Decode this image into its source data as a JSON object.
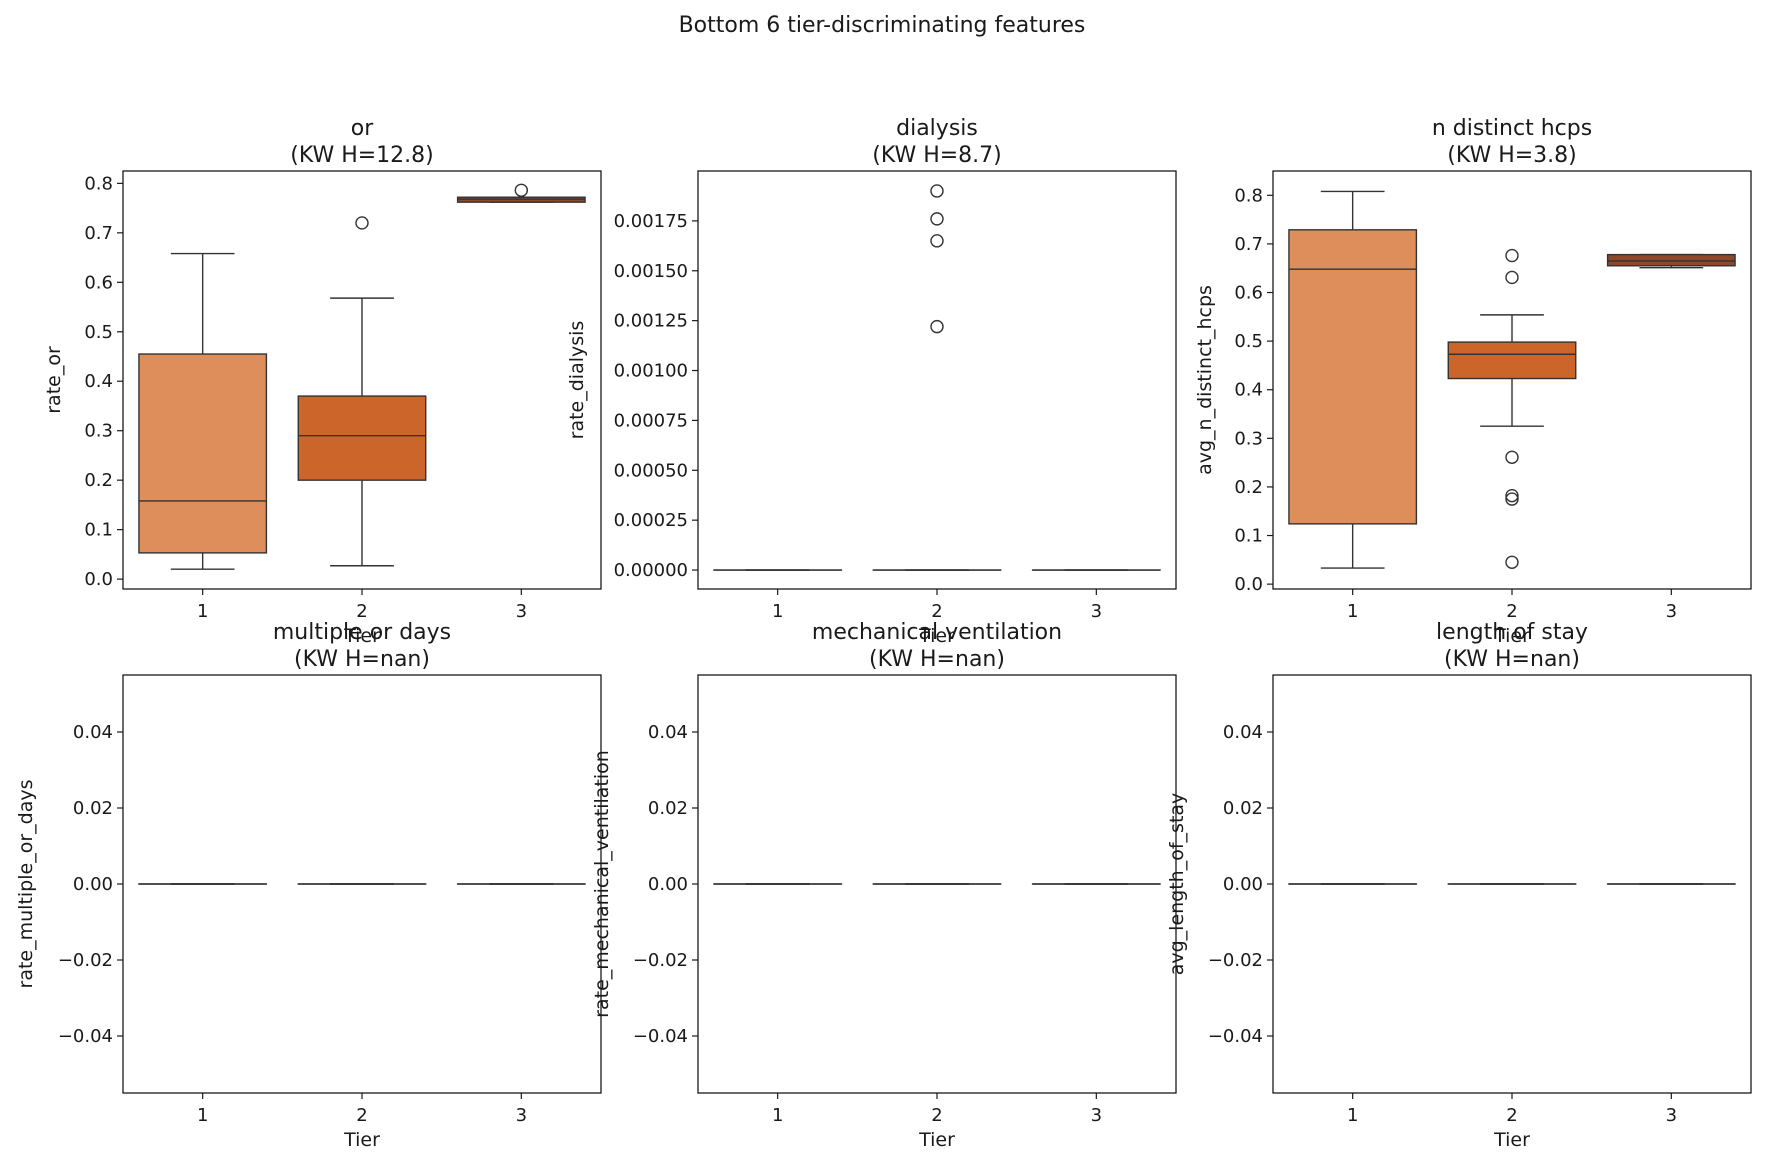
{
  "figure_title": "Bottom 6 tier-discriminating features",
  "colors": {
    "tier1": "#dd8e5b",
    "tier2": "#cc6529",
    "tier3": "#8c4828",
    "edge": "#333333",
    "axis": "#1a1a1a",
    "background": "#ffffff"
  },
  "chart_data": [
    {
      "type": "box",
      "title_line1": "or",
      "title_line2": "(KW H=12.8)",
      "xlabel": "Tier",
      "ylabel": "rate_or",
      "categories": [
        "1",
        "2",
        "3"
      ],
      "ylim": [
        -0.02,
        0.825
      ],
      "yticks": [
        0.0,
        0.1,
        0.2,
        0.3,
        0.4,
        0.5,
        0.6,
        0.7,
        0.8
      ],
      "ytick_labels": [
        "0.0",
        "0.1",
        "0.2",
        "0.3",
        "0.4",
        "0.5",
        "0.6",
        "0.7",
        "0.8"
      ],
      "boxes": [
        {
          "tier": "1",
          "whislo": 0.02,
          "q1": 0.053,
          "med": 0.158,
          "q3": 0.455,
          "whishi": 0.658,
          "fliers": []
        },
        {
          "tier": "2",
          "whislo": 0.027,
          "q1": 0.2,
          "med": 0.29,
          "q3": 0.37,
          "whishi": 0.568,
          "fliers": [
            0.72
          ]
        },
        {
          "tier": "3",
          "whislo": 0.762,
          "q1": 0.762,
          "med": 0.768,
          "q3": 0.772,
          "whishi": 0.772,
          "fliers": [
            0.786
          ]
        }
      ]
    },
    {
      "type": "box",
      "title_line1": "dialysis",
      "title_line2": "(KW H=8.7)",
      "xlabel": "Tier",
      "ylabel": "rate_dialysis",
      "categories": [
        "1",
        "2",
        "3"
      ],
      "ylim": [
        -9.5e-05,
        0.002
      ],
      "yticks": [
        0,
        0.00025,
        0.0005,
        0.00075,
        0.001,
        0.00125,
        0.0015,
        0.00175
      ],
      "ytick_labels": [
        "0.00000",
        "0.00025",
        "0.00050",
        "0.00075",
        "0.00100",
        "0.00125",
        "0.00150",
        "0.00175"
      ],
      "boxes": [
        {
          "tier": "1",
          "whislo": 0,
          "q1": 0,
          "med": 0,
          "q3": 0,
          "whishi": 0,
          "fliers": []
        },
        {
          "tier": "2",
          "whislo": 0,
          "q1": 0,
          "med": 0,
          "q3": 0,
          "whishi": 0,
          "fliers": [
            0.0019,
            0.00176,
            0.00165,
            0.00122
          ]
        },
        {
          "tier": "3",
          "whislo": 0,
          "q1": 0,
          "med": 0,
          "q3": 0,
          "whishi": 0,
          "fliers": []
        }
      ]
    },
    {
      "type": "box",
      "title_line1": "n distinct hcps",
      "title_line2": "(KW H=3.8)",
      "xlabel": "Tier",
      "ylabel": "avg_n_distinct_hcps",
      "categories": [
        "1",
        "2",
        "3"
      ],
      "ylim": [
        -0.01,
        0.85
      ],
      "yticks": [
        0.0,
        0.1,
        0.2,
        0.3,
        0.4,
        0.5,
        0.6,
        0.7,
        0.8
      ],
      "ytick_labels": [
        "0.0",
        "0.1",
        "0.2",
        "0.3",
        "0.4",
        "0.5",
        "0.6",
        "0.7",
        "0.8"
      ],
      "boxes": [
        {
          "tier": "1",
          "whislo": 0.033,
          "q1": 0.124,
          "med": 0.648,
          "q3": 0.729,
          "whishi": 0.808,
          "fliers": []
        },
        {
          "tier": "2",
          "whislo": 0.325,
          "q1": 0.423,
          "med": 0.473,
          "q3": 0.498,
          "whishi": 0.554,
          "fliers": [
            0.676,
            0.631,
            0.261,
            0.182,
            0.175,
            0.045
          ]
        },
        {
          "tier": "3",
          "whislo": 0.651,
          "q1": 0.655,
          "med": 0.665,
          "q3": 0.678,
          "whishi": 0.678,
          "fliers": []
        }
      ]
    },
    {
      "type": "box",
      "title_line1": "multiple or days",
      "title_line2": "(KW H=nan)",
      "xlabel": "Tier",
      "ylabel": "rate_multiple_or_days",
      "categories": [
        "1",
        "2",
        "3"
      ],
      "ylim": [
        -0.055,
        0.055
      ],
      "yticks": [
        -0.04,
        -0.02,
        0.0,
        0.02,
        0.04
      ],
      "ytick_labels": [
        "−0.04",
        "−0.02",
        "0.00",
        "0.02",
        "0.04"
      ],
      "boxes": [
        {
          "tier": "1",
          "whislo": 0,
          "q1": 0,
          "med": 0,
          "q3": 0,
          "whishi": 0,
          "fliers": []
        },
        {
          "tier": "2",
          "whislo": 0,
          "q1": 0,
          "med": 0,
          "q3": 0,
          "whishi": 0,
          "fliers": []
        },
        {
          "tier": "3",
          "whislo": 0,
          "q1": 0,
          "med": 0,
          "q3": 0,
          "whishi": 0,
          "fliers": []
        }
      ]
    },
    {
      "type": "box",
      "title_line1": "mechanical ventilation",
      "title_line2": "(KW H=nan)",
      "xlabel": "Tier",
      "ylabel": "rate_mechanical_ventilation",
      "categories": [
        "1",
        "2",
        "3"
      ],
      "ylim": [
        -0.055,
        0.055
      ],
      "yticks": [
        -0.04,
        -0.02,
        0.0,
        0.02,
        0.04
      ],
      "ytick_labels": [
        "−0.04",
        "−0.02",
        "0.00",
        "0.02",
        "0.04"
      ],
      "boxes": [
        {
          "tier": "1",
          "whislo": 0,
          "q1": 0,
          "med": 0,
          "q3": 0,
          "whishi": 0,
          "fliers": []
        },
        {
          "tier": "2",
          "whislo": 0,
          "q1": 0,
          "med": 0,
          "q3": 0,
          "whishi": 0,
          "fliers": []
        },
        {
          "tier": "3",
          "whislo": 0,
          "q1": 0,
          "med": 0,
          "q3": 0,
          "whishi": 0,
          "fliers": []
        }
      ]
    },
    {
      "type": "box",
      "title_line1": "length of stay",
      "title_line2": "(KW H=nan)",
      "xlabel": "Tier",
      "ylabel": "avg_length_of_stay",
      "categories": [
        "1",
        "2",
        "3"
      ],
      "ylim": [
        -0.055,
        0.055
      ],
      "yticks": [
        -0.04,
        -0.02,
        0.0,
        0.02,
        0.04
      ],
      "ytick_labels": [
        "−0.04",
        "−0.02",
        "0.00",
        "0.02",
        "0.04"
      ],
      "boxes": [
        {
          "tier": "1",
          "whislo": 0,
          "q1": 0,
          "med": 0,
          "q3": 0,
          "whishi": 0,
          "fliers": []
        },
        {
          "tier": "2",
          "whislo": 0,
          "q1": 0,
          "med": 0,
          "q3": 0,
          "whishi": 0,
          "fliers": []
        },
        {
          "tier": "3",
          "whislo": 0,
          "q1": 0,
          "med": 0,
          "q3": 0,
          "whishi": 0,
          "fliers": []
        }
      ]
    }
  ]
}
